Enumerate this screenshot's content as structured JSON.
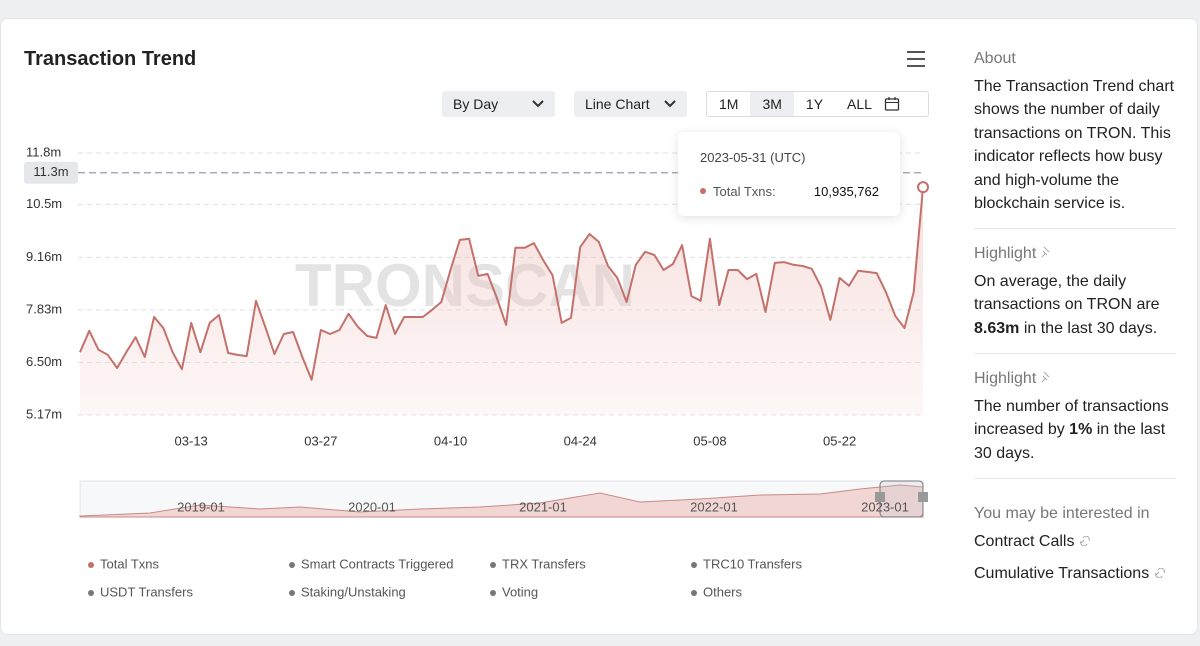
{
  "header": {
    "title": "Transaction Trend"
  },
  "controls": {
    "interval": "By Day",
    "chart_style": "Line Chart",
    "ranges": [
      "1M",
      "3M",
      "1Y",
      "ALL"
    ],
    "active_range": 1
  },
  "chart_data": {
    "type": "line",
    "watermark": "TRONSCAN",
    "categories": [
      null,
      null,
      null,
      null,
      null,
      null,
      null,
      null,
      null,
      null,
      null,
      null,
      "03-13",
      null,
      null,
      null,
      null,
      null,
      null,
      null,
      null,
      null,
      null,
      null,
      null,
      null,
      "03-27",
      null,
      null,
      null,
      null,
      null,
      null,
      null,
      null,
      null,
      null,
      null,
      null,
      null,
      "04-10",
      null,
      null,
      null,
      null,
      null,
      null,
      null,
      null,
      null,
      null,
      null,
      null,
      null,
      "04-24",
      null,
      null,
      null,
      null,
      null,
      null,
      null,
      null,
      null,
      null,
      null,
      null,
      null,
      "05-08",
      null,
      null,
      null,
      null,
      null,
      null,
      null,
      null,
      null,
      null,
      null,
      null,
      null,
      "05-22",
      null,
      null,
      null,
      null,
      null,
      null,
      null,
      null,
      null
    ],
    "series": [
      {
        "name": "Total Txns",
        "color": "#c4716b",
        "values": [
          6760000,
          7300000,
          6820000,
          6690000,
          6360000,
          6760000,
          7140000,
          6640000,
          7650000,
          7370000,
          6760000,
          6330000,
          7500000,
          6760000,
          7500000,
          7700000,
          6740000,
          6690000,
          6660000,
          8060000,
          7400000,
          6710000,
          7220000,
          7270000,
          6640000,
          6060000,
          7320000,
          7220000,
          7320000,
          7730000,
          7400000,
          7170000,
          7120000,
          7950000,
          7220000,
          7650000,
          7650000,
          7650000,
          7830000,
          8030000,
          8840000,
          9600000,
          9630000,
          8690000,
          8740000,
          8130000,
          7450000,
          9400000,
          9400000,
          9520000,
          9090000,
          8710000,
          7500000,
          7630000,
          9420000,
          9750000,
          9550000,
          8940000,
          8640000,
          8030000,
          8970000,
          9300000,
          9220000,
          8840000,
          8990000,
          9470000,
          8180000,
          8060000,
          9630000,
          7950000,
          8840000,
          8840000,
          8610000,
          8740000,
          7780000,
          9020000,
          9040000,
          8970000,
          8940000,
          8870000,
          8410000,
          7580000,
          8640000,
          8440000,
          8820000,
          8790000,
          8760000,
          8280000,
          7680000,
          7370000,
          8280000,
          10935762
        ]
      }
    ],
    "other_legend_items": [
      "Smart Contracts Triggered",
      "TRX Transfers",
      "TRC10 Transfers",
      "USDT Transfers",
      "Staking/Unstaking",
      "Voting",
      "Others"
    ],
    "ylim": [
      5170000,
      11800000
    ],
    "yticks": [
      {
        "value": 5170000,
        "label": "5.17m"
      },
      {
        "value": 6500000,
        "label": "6.50m"
      },
      {
        "value": 7830000,
        "label": "7.83m"
      },
      {
        "value": 9160000,
        "label": "9.16m"
      },
      {
        "value": 10500000,
        "label": "10.5m"
      },
      {
        "value": 11800000,
        "label": "11.8m"
      }
    ],
    "grid": true,
    "marker": {
      "value": 11300000,
      "label": "11.3m"
    },
    "tooltip": {
      "date": "2023-05-31 (UTC)",
      "series": "Total Txns:",
      "value": "10,935,762"
    },
    "navigator": {
      "labels": [
        "2019-01",
        "2020-01",
        "2021-01",
        "2022-01",
        "2023-01"
      ]
    }
  },
  "sidebar": {
    "about": {
      "title": "About",
      "text": "The Transaction Trend chart shows the number of daily transactions on TRON. This indicator reflects how busy and high-volume the blockchain service is."
    },
    "highlights": [
      {
        "title": "Highlight",
        "before": "On average, the daily transactions on TRON are ",
        "bold": "8.63m",
        "after": " in the last 30 days."
      },
      {
        "title": "Highlight",
        "before": "The number of transactions increased by ",
        "bold": "1%",
        "after": " in the last 30 days."
      }
    ],
    "related": {
      "title": "You may be interested in",
      "links": [
        "Contract Calls",
        "Cumulative Transactions"
      ]
    }
  }
}
